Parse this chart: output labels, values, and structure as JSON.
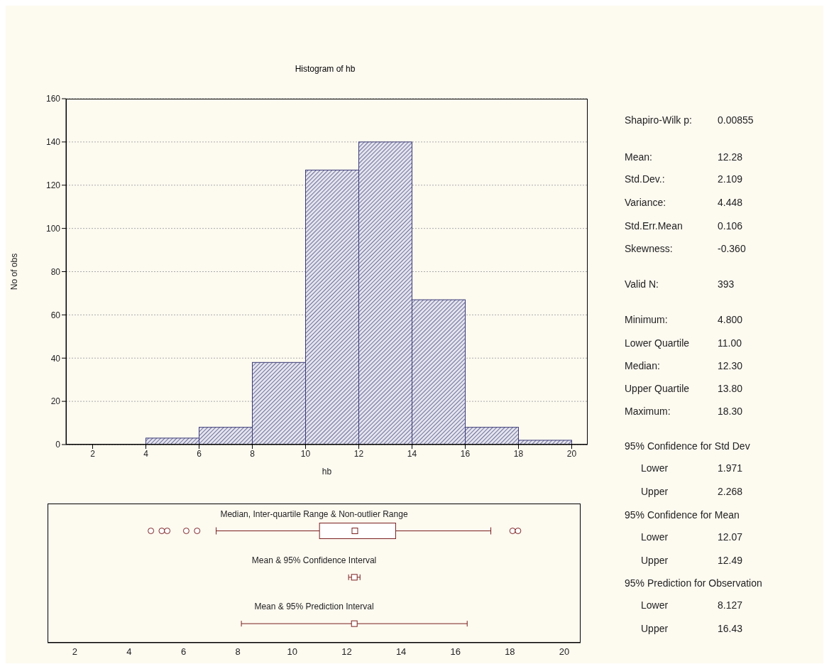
{
  "chart_data": [
    {
      "type": "histogram",
      "title": "Histogram of hb",
      "xlabel": "hb",
      "ylabel": "No of obs",
      "bins": [
        4,
        6,
        8,
        10,
        12,
        14,
        16,
        18,
        20
      ],
      "values": [
        3,
        8,
        38,
        127,
        140,
        67,
        8,
        2
      ],
      "color": "#3c3c78",
      "xlim": [
        1,
        20.6
      ],
      "xticks": [
        2,
        4,
        6,
        8,
        10,
        12,
        14,
        16,
        18,
        20
      ],
      "ylim": [
        0,
        160
      ],
      "yticks": [
        0,
        20,
        40,
        60,
        80,
        100,
        120,
        140,
        160
      ],
      "grid": "y"
    },
    {
      "type": "box",
      "orientation": "horizontal",
      "categories": [
        "Median, Inter-quartile Range & Non-outlier Range",
        "Mean & 95% Confidence Interval",
        "Mean & 95% Prediction Interval"
      ],
      "xlim": [
        1,
        20.6
      ],
      "xticks": [
        2,
        4,
        6,
        8,
        10,
        12,
        14,
        16,
        18,
        20
      ],
      "series": [
        {
          "type": "box",
          "color": "#7a1f1f",
          "boxes": [
            {
              "low": 7.2,
              "q1": 11.0,
              "median": 12.3,
              "q3": 13.8,
              "high": 17.3,
              "outliers": [
                4.8,
                5.2,
                5.4,
                6.1,
                6.5,
                18.1,
                18.3
              ]
            },
            null,
            null
          ]
        },
        {
          "type": "scatter",
          "color": "#7a1f1f",
          "marker": "square",
          "values": [
            null,
            12.28,
            12.28
          ],
          "errors": [
            null,
            [
              12.07,
              12.49
            ],
            [
              8.127,
              16.43
            ]
          ]
        }
      ]
    },
    {
      "type": "other",
      "annotations": [
        "Shapiro-Wilk p:",
        "0.00855",
        "Mean:",
        "12.28",
        "Std.Dev.:",
        "2.109",
        "Variance:",
        "4.448",
        "Std.Err.Mean",
        "0.106",
        "Skewness:",
        "-0.360",
        "Valid N:",
        "393",
        "Minimum:",
        "4.800",
        "Lower Quartile",
        "11.00",
        "Median:",
        "12.30",
        "Upper Quartile",
        "13.80",
        "Maximum:",
        "18.30",
        "95% Confidence for Std Dev",
        "Lower",
        "1.971",
        "Upper",
        "2.268",
        "95% Confidence for Mean",
        "Lower",
        "12.07",
        "Upper",
        "12.49",
        "95% Prediction for Observation",
        "Lower",
        "8.127",
        "Upper",
        "16.43"
      ]
    }
  ]
}
